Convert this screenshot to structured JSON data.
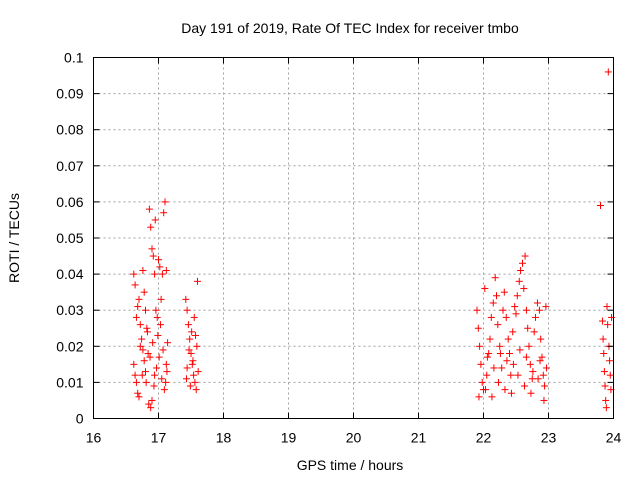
{
  "chart_data": {
    "type": "scatter",
    "title": "Day 191 of 2019, Rate Of TEC Index for receiver tmbo",
    "xlabel": "GPS time / hours",
    "ylabel": "ROTI / TECUs",
    "xlim": [
      16,
      24
    ],
    "ylim": [
      0,
      0.1
    ],
    "xticks": [
      "16",
      "17",
      "18",
      "19",
      "20",
      "21",
      "22",
      "23",
      "24"
    ],
    "yticks": [
      "0",
      "0.01",
      "0.02",
      "0.03",
      "0.04",
      "0.05",
      "0.06",
      "0.07",
      "0.08",
      "0.09",
      "0.1"
    ],
    "grid": true,
    "marker": "plus",
    "color": "#ff0000",
    "series": [
      {
        "points": [
          [
            16.62,
            0.04
          ],
          [
            16.64,
            0.037
          ],
          [
            16.66,
            0.028
          ],
          [
            16.68,
            0.031
          ],
          [
            16.7,
            0.033
          ],
          [
            16.62,
            0.015
          ],
          [
            16.64,
            0.012
          ],
          [
            16.66,
            0.01
          ],
          [
            16.68,
            0.007
          ],
          [
            16.7,
            0.006
          ],
          [
            16.72,
            0.02
          ],
          [
            16.74,
            0.022
          ],
          [
            16.76,
            0.041
          ],
          [
            16.78,
            0.035
          ],
          [
            16.8,
            0.03
          ],
          [
            16.82,
            0.025
          ],
          [
            16.84,
            0.018
          ],
          [
            16.86,
            0.058
          ],
          [
            16.88,
            0.053
          ],
          [
            16.9,
            0.047
          ],
          [
            16.92,
            0.045
          ],
          [
            16.94,
            0.04
          ],
          [
            16.95,
            0.055
          ],
          [
            16.96,
            0.03
          ],
          [
            16.98,
            0.028
          ],
          [
            17.0,
            0.044
          ],
          [
            17.02,
            0.042
          ],
          [
            17.04,
            0.033
          ],
          [
            17.06,
            0.04
          ],
          [
            17.08,
            0.057
          ],
          [
            17.1,
            0.06
          ],
          [
            17.12,
            0.041
          ],
          [
            17.14,
            0.021
          ],
          [
            16.75,
            0.012
          ],
          [
            16.78,
            0.016
          ],
          [
            16.81,
            0.01
          ],
          [
            16.85,
            0.004
          ],
          [
            16.88,
            0.003
          ],
          [
            16.9,
            0.005
          ],
          [
            16.93,
            0.009
          ],
          [
            16.97,
            0.014
          ],
          [
            17.01,
            0.017
          ],
          [
            17.05,
            0.011
          ],
          [
            17.09,
            0.008
          ],
          [
            17.12,
            0.015
          ],
          [
            16.72,
            0.026
          ],
          [
            16.76,
            0.019
          ],
          [
            16.83,
            0.024
          ],
          [
            16.91,
            0.021
          ],
          [
            16.99,
            0.023
          ],
          [
            17.07,
            0.019
          ],
          [
            17.13,
            0.013
          ],
          [
            16.8,
            0.013
          ],
          [
            16.87,
            0.017
          ],
          [
            16.94,
            0.012
          ],
          [
            17.03,
            0.026
          ],
          [
            17.11,
            0.01
          ],
          [
            17.42,
            0.033
          ],
          [
            17.44,
            0.03
          ],
          [
            17.46,
            0.026
          ],
          [
            17.48,
            0.022
          ],
          [
            17.5,
            0.018
          ],
          [
            17.52,
            0.015
          ],
          [
            17.54,
            0.012
          ],
          [
            17.56,
            0.01
          ],
          [
            17.58,
            0.008
          ],
          [
            17.6,
            0.038
          ],
          [
            17.44,
            0.014
          ],
          [
            17.47,
            0.019
          ],
          [
            17.51,
            0.024
          ],
          [
            17.55,
            0.028
          ],
          [
            17.59,
            0.02
          ],
          [
            17.43,
            0.011
          ],
          [
            17.49,
            0.009
          ],
          [
            17.53,
            0.016
          ],
          [
            17.57,
            0.023
          ],
          [
            17.61,
            0.013
          ],
          [
            21.9,
            0.03
          ],
          [
            21.92,
            0.025
          ],
          [
            21.94,
            0.02
          ],
          [
            21.96,
            0.015
          ],
          [
            21.98,
            0.01
          ],
          [
            22.0,
            0.008
          ],
          [
            22.02,
            0.036
          ],
          [
            22.05,
            0.012
          ],
          [
            22.08,
            0.018
          ],
          [
            22.1,
            0.022
          ],
          [
            22.12,
            0.028
          ],
          [
            22.15,
            0.032
          ],
          [
            22.18,
            0.039
          ],
          [
            22.2,
            0.034
          ],
          [
            22.22,
            0.026
          ],
          [
            22.25,
            0.02
          ],
          [
            22.28,
            0.014
          ],
          [
            22.3,
            0.03
          ],
          [
            22.32,
            0.035
          ],
          [
            22.35,
            0.028
          ],
          [
            22.38,
            0.022
          ],
          [
            22.4,
            0.018
          ],
          [
            22.42,
            0.012
          ],
          [
            22.45,
            0.024
          ],
          [
            22.48,
            0.031
          ],
          [
            22.5,
            0.029
          ],
          [
            22.52,
            0.034
          ],
          [
            22.55,
            0.038
          ],
          [
            22.57,
            0.041
          ],
          [
            22.6,
            0.043
          ],
          [
            22.62,
            0.036
          ],
          [
            22.64,
            0.045
          ],
          [
            22.66,
            0.03
          ],
          [
            22.68,
            0.025
          ],
          [
            22.7,
            0.02
          ],
          [
            22.72,
            0.015
          ],
          [
            22.75,
            0.011
          ],
          [
            22.78,
            0.024
          ],
          [
            22.8,
            0.028
          ],
          [
            22.83,
            0.032
          ],
          [
            22.86,
            0.03
          ],
          [
            22.88,
            0.022
          ],
          [
            22.9,
            0.017
          ],
          [
            22.92,
            0.012
          ],
          [
            22.94,
            0.009
          ],
          [
            22.96,
            0.031
          ],
          [
            21.93,
            0.006
          ],
          [
            22.03,
            0.008
          ],
          [
            22.13,
            0.006
          ],
          [
            22.23,
            0.01
          ],
          [
            22.33,
            0.008
          ],
          [
            22.43,
            0.007
          ],
          [
            22.53,
            0.012
          ],
          [
            22.63,
            0.009
          ],
          [
            22.73,
            0.007
          ],
          [
            22.84,
            0.011
          ],
          [
            22.93,
            0.005
          ],
          [
            22.06,
            0.017
          ],
          [
            22.16,
            0.014
          ],
          [
            22.26,
            0.018
          ],
          [
            22.36,
            0.016
          ],
          [
            22.46,
            0.015
          ],
          [
            22.56,
            0.019
          ],
          [
            22.66,
            0.017
          ],
          [
            22.76,
            0.013
          ],
          [
            22.87,
            0.016
          ],
          [
            22.97,
            0.014
          ],
          [
            23.8,
            0.059
          ],
          [
            23.83,
            0.027
          ],
          [
            23.84,
            0.022
          ],
          [
            23.85,
            0.018
          ],
          [
            23.86,
            0.013
          ],
          [
            23.87,
            0.009
          ],
          [
            23.88,
            0.005
          ],
          [
            23.89,
            0.003
          ],
          [
            23.9,
            0.031
          ],
          [
            23.91,
            0.026
          ],
          [
            23.92,
            0.096
          ],
          [
            23.93,
            0.02
          ],
          [
            23.94,
            0.016
          ],
          [
            23.95,
            0.012
          ],
          [
            23.96,
            0.008
          ],
          [
            23.97,
            0.028
          ]
        ]
      }
    ]
  }
}
